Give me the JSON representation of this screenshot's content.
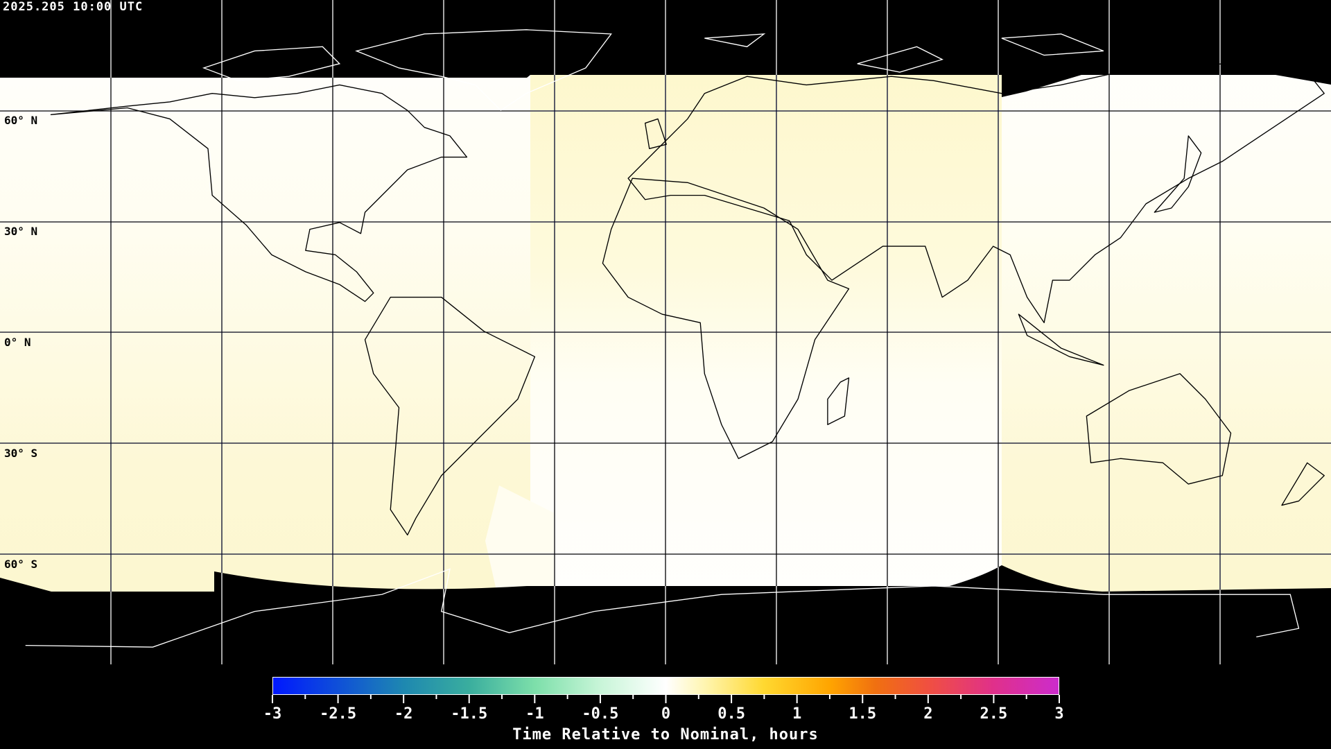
{
  "title": "2025.205 10:00 UTC",
  "latitude_labels": [
    "60° N",
    "30° N",
    "0° N",
    "30° S",
    "60° S"
  ],
  "colorbar": {
    "label": "Time Relative to Nominal, hours",
    "min": -3,
    "max": 3,
    "ticks": [
      "-3",
      "-2.5",
      "-2",
      "-1.5",
      "-1",
      "-0.5",
      "0",
      "0.5",
      "1",
      "1.5",
      "2",
      "2.5",
      "3"
    ],
    "stops": [
      {
        "value": -3,
        "color": "#0018ff"
      },
      {
        "value": -2,
        "color": "#1e88b0"
      },
      {
        "value": -1.5,
        "color": "#3aae9e"
      },
      {
        "value": -1,
        "color": "#7ddfaa"
      },
      {
        "value": -0.5,
        "color": "#c8f5d8"
      },
      {
        "value": 0,
        "color": "#ffffff"
      },
      {
        "value": 0.3,
        "color": "#fff5b0"
      },
      {
        "value": 0.75,
        "color": "#ffd830"
      },
      {
        "value": 1.25,
        "color": "#ffa500"
      },
      {
        "value": 1.6,
        "color": "#f07010"
      },
      {
        "value": 2,
        "color": "#f05040"
      },
      {
        "value": 2.5,
        "color": "#e0308a"
      },
      {
        "value": 3,
        "color": "#cc2ccc"
      }
    ]
  },
  "colors": {
    "night": "#000000",
    "near_zero": "#ffffff",
    "slight_positive": "#fdf8d2"
  }
}
